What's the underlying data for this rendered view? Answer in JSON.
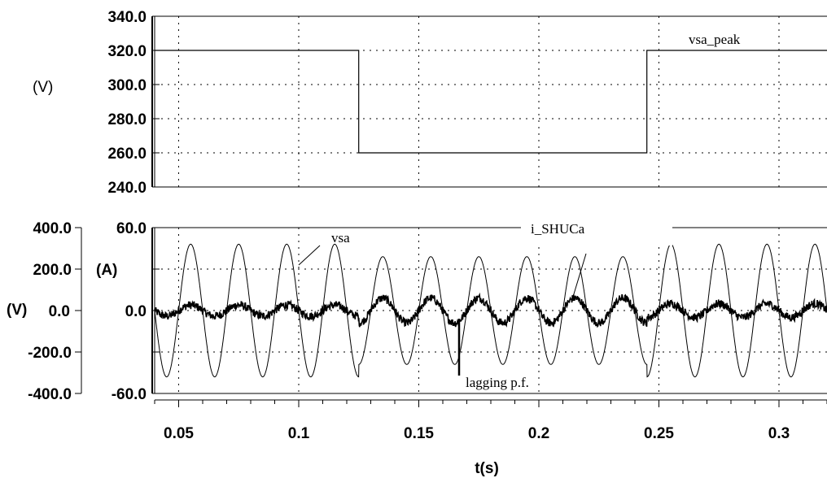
{
  "chart_data": [
    {
      "type": "line",
      "ylabel": "(V)",
      "ylim": [
        240,
        340
      ],
      "yticks": [
        "340.0",
        "320.0",
        "300.0",
        "280.0",
        "260.0",
        "240.0"
      ],
      "xlim": [
        0.04,
        0.32
      ],
      "grid": true,
      "series": [
        {
          "name": "vsa_peak",
          "x": [
            0.04,
            0.125,
            0.125,
            0.245,
            0.245,
            0.32
          ],
          "y": [
            320,
            320,
            260,
            260,
            320,
            320
          ]
        }
      ]
    },
    {
      "type": "line",
      "ylabel_left": "(V)",
      "ylabel_right": "(A)",
      "ylim_left": [
        -400,
        400
      ],
      "ylim_right": [
        -60,
        60
      ],
      "yticks_left": [
        "400.0",
        "200.0",
        "0.0",
        "-200.0",
        "-400.0"
      ],
      "yticks_right": [
        "60.0",
        "",
        "0.0",
        "",
        "-60.0"
      ],
      "xlabel": "t(s)",
      "xlim": [
        0.04,
        0.32
      ],
      "xticks": [
        "0.05",
        "0.1",
        "0.15",
        "0.2",
        "0.25",
        "0.3"
      ],
      "xtick_values": [
        0.05,
        0.1,
        0.15,
        0.2,
        0.25,
        0.3
      ],
      "grid": true,
      "series": [
        {
          "name": "vsa",
          "frequency_hz": 50,
          "segments": [
            {
              "t_start": 0.04,
              "t_end": 0.125,
              "amplitude_v": 320
            },
            {
              "t_start": 0.125,
              "t_end": 0.245,
              "amplitude_v": 260
            },
            {
              "t_start": 0.245,
              "t_end": 0.32,
              "amplitude_v": 320
            }
          ]
        },
        {
          "name": "i_SHUCa",
          "frequency_hz": 50,
          "segments": [
            {
              "t_start": 0.04,
              "t_end": 0.125,
              "amplitude_a": 4
            },
            {
              "t_start": 0.125,
              "t_end": 0.245,
              "amplitude_a": 9
            },
            {
              "t_start": 0.245,
              "t_end": 0.32,
              "amplitude_a": 5
            }
          ],
          "noise_a": 3
        }
      ],
      "annotations": [
        "vsa",
        "i_SHUCa",
        "lagging p.f."
      ]
    }
  ]
}
